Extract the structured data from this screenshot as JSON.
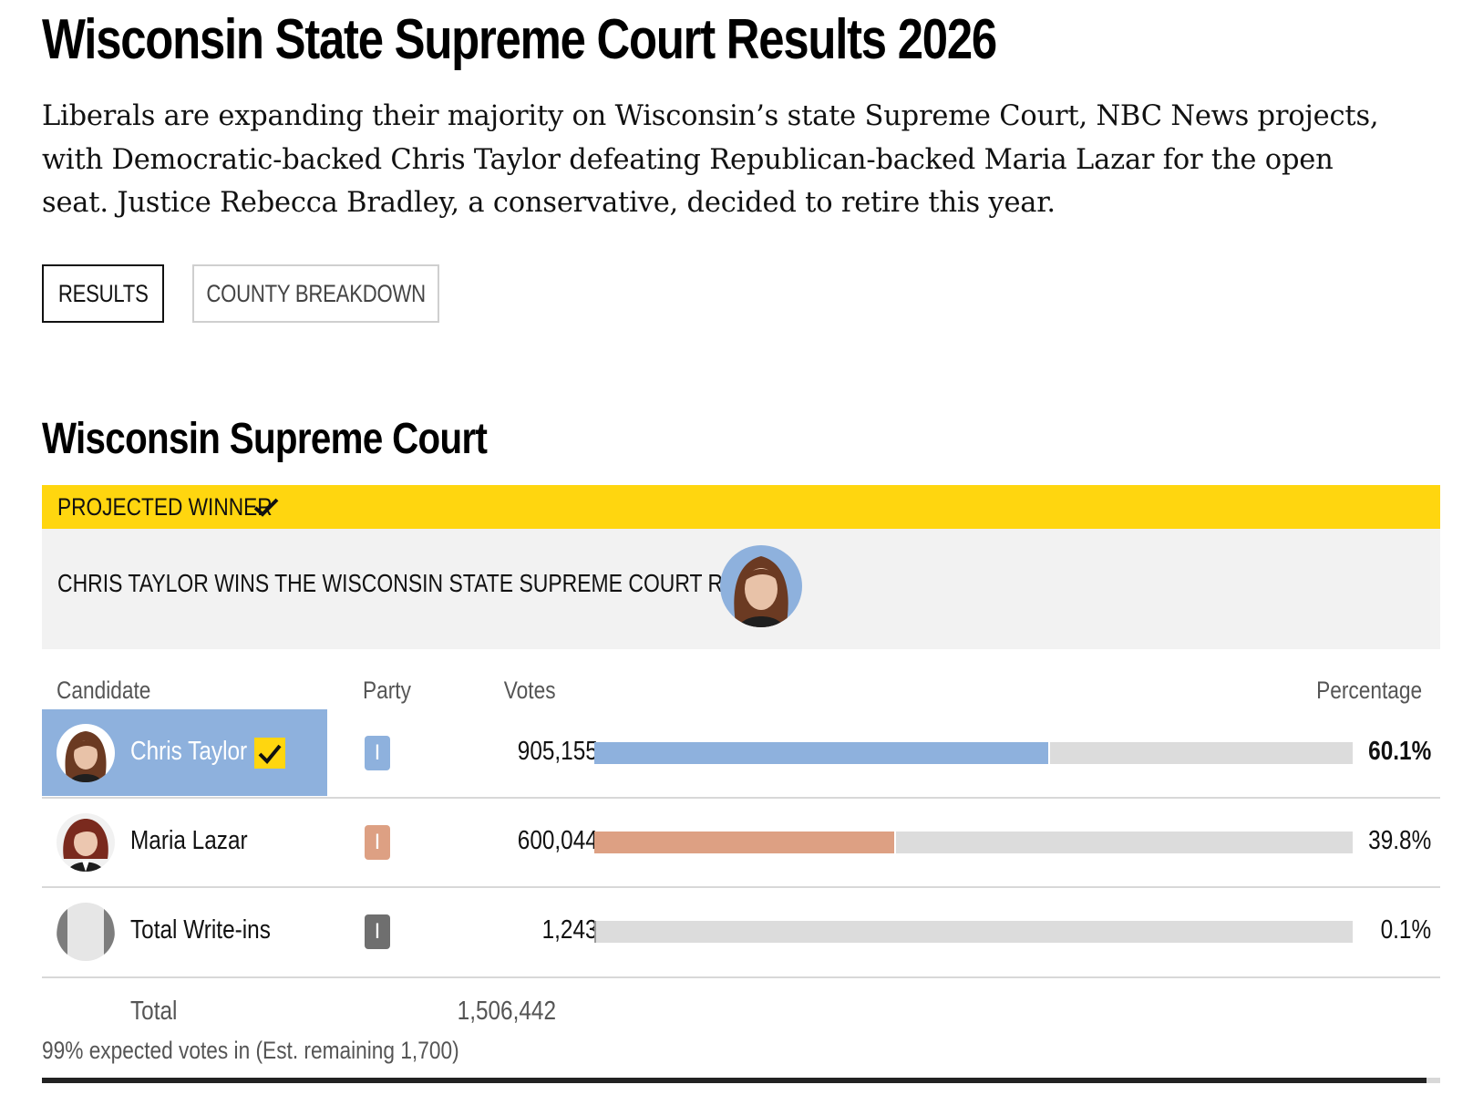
{
  "page": {
    "title": "Wisconsin State Supreme Court Results 2026",
    "intro": "Liberals are expanding their majority on Wisconsin’s state Supreme Court, NBC News projects, with Democratic-backed Chris Taylor defeating Republican-backed Maria Lazar for the open seat. Justice Rebecca Bradley, a conservative, decided to retire this year."
  },
  "tabs": [
    {
      "label": "RESULTS",
      "active": true
    },
    {
      "label": "COUNTY BREAKDOWN",
      "active": false
    }
  ],
  "race": {
    "title": "Wisconsin Supreme Court",
    "projected_label": "PROJECTED WINNER",
    "winner_text": "CHRIS TAYLOR WINS THE WISCONSIN STATE SUPREME COURT RACE",
    "columns": {
      "candidate": "Candidate",
      "party": "Party",
      "votes": "Votes",
      "percentage": "Percentage"
    },
    "candidates": [
      {
        "name": "Chris Taylor",
        "party": "I",
        "votes": "905,155",
        "percent_label": "60.1%",
        "percent": 60.1,
        "winner": true,
        "party_color": "#8eb1dd",
        "bar_color": "#8eb1dd"
      },
      {
        "name": "Maria Lazar",
        "party": "I",
        "votes": "600,044",
        "percent_label": "39.8%",
        "percent": 39.8,
        "winner": false,
        "party_color": "#dda083",
        "bar_color": "#dda083"
      },
      {
        "name": "Total Write-ins",
        "party": "I",
        "votes": "1,243",
        "percent_label": "0.1%",
        "percent": 0.1,
        "winner": false,
        "party_color": "#6f6f6f",
        "bar_color": "#9a9a9a"
      }
    ],
    "total_label": "Total",
    "total_votes": "1,506,442",
    "expected_text": "99% expected votes in (Est. remaining 1,700)",
    "expected_pct": 99
  },
  "colors": {
    "accent_yellow": "#ffd60f",
    "winner_blue": "#8eb1dd",
    "panel_gray": "#f2f2f2"
  }
}
